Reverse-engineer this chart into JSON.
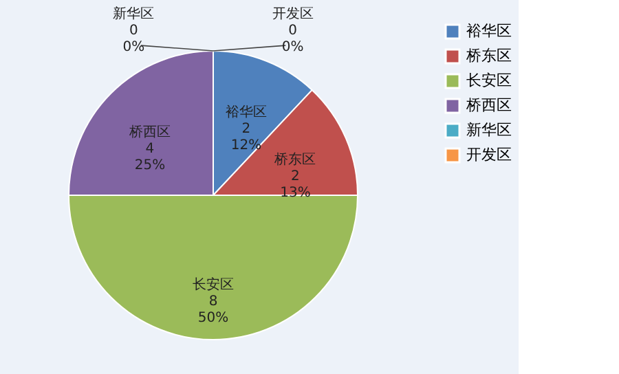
{
  "chart_data": {
    "type": "pie",
    "categories": [
      "裕华区",
      "桥东区",
      "长安区",
      "桥西区",
      "新华区",
      "开发区"
    ],
    "values": [
      12,
      13,
      50,
      25,
      0,
      0
    ],
    "colors": [
      "#4f81bd",
      "#c0504d",
      "#9bbb59",
      "#8064a2",
      "#4bacc6",
      "#f79646"
    ],
    "value_labels": [
      "2\n12%",
      "2\n13%",
      "8\n50%",
      "4\n25%",
      "0\n0%",
      "0\n0%"
    ],
    "legend": "right"
  }
}
